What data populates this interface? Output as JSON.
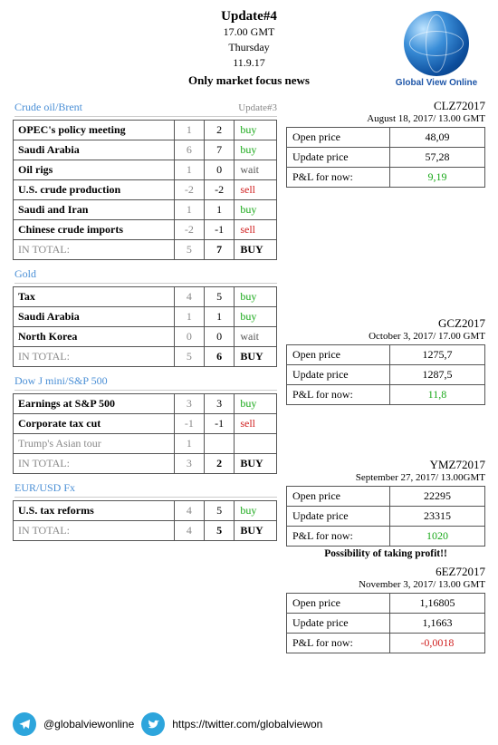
{
  "header": {
    "title": "Update#4",
    "time": "17.00 GMT",
    "day": "Thursday",
    "date": "11.9.17",
    "focus": "Only market focus news",
    "logo_caption": "Global View Online"
  },
  "sections": {
    "crude": {
      "title": "Crude oil/Brent",
      "sub": "Update#3",
      "rows": [
        {
          "label": "OPEC's policy meeting",
          "c1": "1",
          "c2": "2",
          "act": "buy",
          "cls": "buy"
        },
        {
          "label": "Saudi Arabia",
          "c1": "6",
          "c2": "7",
          "act": "buy",
          "cls": "buy"
        },
        {
          "label": "Oil rigs",
          "c1": "1",
          "c2": "0",
          "act": "wait",
          "cls": "wait"
        },
        {
          "label": "U.S. crude production",
          "c1": "-2",
          "c2": "-2",
          "act": "sell",
          "cls": "sell"
        },
        {
          "label": "Saudi  and Iran",
          "c1": "1",
          "c2": "1",
          "act": "buy",
          "cls": "buy"
        },
        {
          "label": "Chinese crude imports",
          "c1": "-2",
          "c2": "-1",
          "act": "sell",
          "cls": "sell"
        }
      ],
      "total": {
        "label": "IN TOTAL:",
        "c1": "5",
        "c2": "7",
        "act": "BUY",
        "cls": "BUY"
      }
    },
    "gold": {
      "title": "Gold",
      "rows": [
        {
          "label": "Tax",
          "c1": "4",
          "c2": "5",
          "act": "buy",
          "cls": "buy"
        },
        {
          "label": "Saudi Arabia",
          "c1": "1",
          "c2": "1",
          "act": "buy",
          "cls": "buy"
        },
        {
          "label": "North Korea",
          "c1": "0",
          "c2": "0",
          "act": "wait",
          "cls": "wait"
        }
      ],
      "total": {
        "label": "IN TOTAL:",
        "c1": "5",
        "c2": "6",
        "act": "BUY",
        "cls": "BUY"
      }
    },
    "dow": {
      "title": "Dow J mini/S&P 500",
      "rows": [
        {
          "label": "Earnings at S&P 500",
          "c1": "3",
          "c2": "3",
          "act": "buy",
          "cls": "buy"
        },
        {
          "label": "Corporate tax cut",
          "c1": "-1",
          "c2": "-1",
          "act": "sell",
          "cls": "sell"
        },
        {
          "label": "Trump's Asian tour",
          "c1": "1",
          "c2": "",
          "act": "",
          "cls": "",
          "muted": true
        }
      ],
      "total": {
        "label": "IN TOTAL:",
        "c1": "3",
        "c2": "2",
        "act": "BUY",
        "cls": "BUY"
      }
    },
    "eur": {
      "title": "EUR/USD Fx",
      "rows": [
        {
          "label": "U.S. tax reforms",
          "c1": "4",
          "c2": "5",
          "act": "buy",
          "cls": "buy"
        }
      ],
      "total": {
        "label": "IN TOTAL:",
        "c1": "4",
        "c2": "5",
        "act": "BUY",
        "cls": "BUY"
      }
    }
  },
  "right": {
    "clz": {
      "ticker": "CLZ72017",
      "sub": "August 18, 2017/ 13.00 GMT",
      "open_k": "Open price",
      "open_v": "48,09",
      "upd_k": "Update price",
      "upd_v": "57,28",
      "pnl_k": "P&L for now:",
      "pnl_v": "9,19",
      "pnl_cls": "pnl-pos"
    },
    "gcz": {
      "ticker": "GCZ2017",
      "sub": "October 3, 2017/ 17.00 GMT",
      "open_k": "Open price",
      "open_v": "1275,7",
      "upd_k": "Update price",
      "upd_v": "1287,5",
      "pnl_k": "P&L for now:",
      "pnl_v": "11,8",
      "pnl_cls": "pnl-pos"
    },
    "ymz": {
      "ticker": "YMZ72017",
      "sub": "September 27, 2017/ 13.00GMT",
      "open_k": "Open price",
      "open_v": "22295",
      "upd_k": "Update price",
      "upd_v": "23315",
      "pnl_k": "P&L for now:",
      "pnl_v": "1020",
      "pnl_cls": "pnl-pos",
      "note": "Possibility of taking profit!!"
    },
    "ez": {
      "ticker": "6EZ72017",
      "sub": "November 3, 2017/ 13.00 GMT",
      "open_k": "Open price",
      "open_v": "1,16805",
      "upd_k": "Update price",
      "upd_v": "1,1663",
      "pnl_k": "P&L for now:",
      "pnl_v": "-0,0018",
      "pnl_cls": "pnl-neg"
    }
  },
  "footer": {
    "telegram": "@globalviewonline",
    "twitter": "https://twitter.com/globalviewon"
  }
}
